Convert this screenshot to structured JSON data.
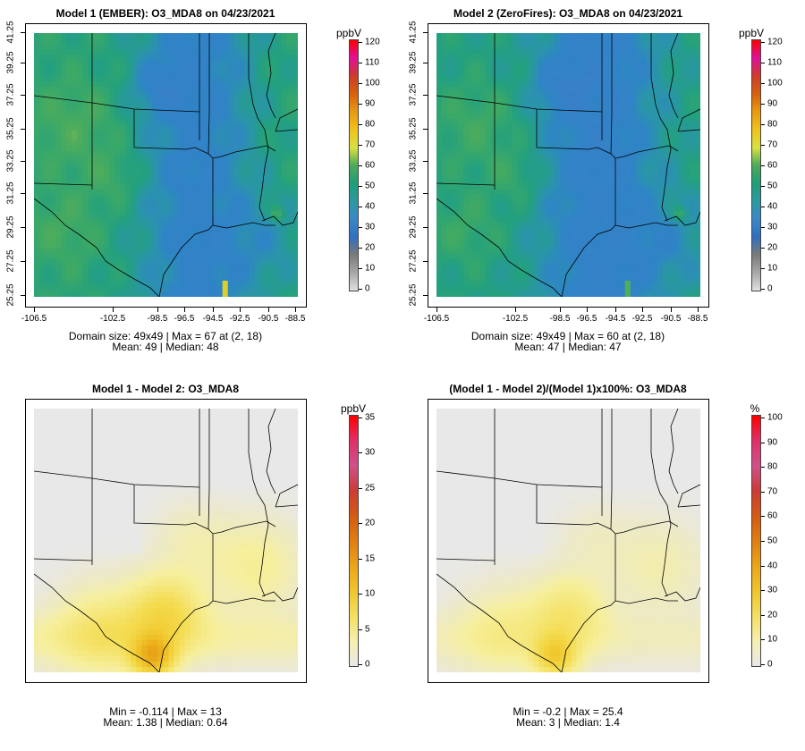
{
  "colors": {
    "frame": "#000000",
    "land_bg": "#e6e6e6",
    "absolute_scale": [
      "#e0e0e0",
      "#a8a8a8",
      "#7a7a7a",
      "#2f6fc0",
      "#3a88c8",
      "#2b9aa0",
      "#1f9e78",
      "#4caa5a",
      "#d9e040",
      "#f0c21a",
      "#e89a10",
      "#d8600c",
      "#cf3c2a",
      "#e0109a",
      "#ff0000"
    ],
    "diff_scale": [
      "#e8e8e8",
      "#f6efb0",
      "#f4df60",
      "#f0c52a",
      "#eca418",
      "#e07e10",
      "#d55a12",
      "#cc3b35",
      "#d0508a",
      "#e03068",
      "#ff0000"
    ]
  },
  "panels": [
    {
      "title": "Model 1 (EMBER): O3_MDA8 on 04/23/2021",
      "unit": "ppbV",
      "kind": "absolute",
      "colorbar_ticks": [
        "120",
        "110",
        "100",
        "90",
        "80",
        "70",
        "60",
        "50",
        "40",
        "30",
        "20",
        "10",
        "0"
      ],
      "x_ticks": [
        "-106.5",
        "-102.5",
        "-98.5",
        "-96.5",
        "-94.5",
        "-92.5",
        "-90.5",
        "-88.5"
      ],
      "y_ticks": [
        "41.25",
        "39.25",
        "37.25",
        "35.25",
        "33.25",
        "31.25",
        "29.25",
        "27.25",
        "25.25"
      ],
      "stat_line1": "Domain size: 49x49 | Max = 67 at (2, 18)",
      "stat_line2": "Mean: 49 |  Median: 48"
    },
    {
      "title": "Model 2 (ZeroFires): O3_MDA8 on 04/23/2021",
      "unit": "ppbV",
      "kind": "absolute",
      "colorbar_ticks": [
        "120",
        "110",
        "100",
        "90",
        "80",
        "70",
        "60",
        "50",
        "40",
        "30",
        "20",
        "10",
        "0"
      ],
      "x_ticks": [
        "-106.5",
        "-102.5",
        "-98.5",
        "-96.5",
        "-94.5",
        "-92.5",
        "-90.5",
        "-88.5"
      ],
      "y_ticks": [
        "41.25",
        "39.25",
        "37.25",
        "35.25",
        "33.25",
        "31.25",
        "29.25",
        "27.25",
        "25.25"
      ],
      "stat_line1": "Domain size: 49x49 | Max = 60 at (2, 18)",
      "stat_line2": "Mean: 47 |  Median: 47"
    },
    {
      "title": "Model 1 - Model 2: O3_MDA8",
      "unit": "ppbV",
      "kind": "diff",
      "colorbar_ticks": [
        "35",
        "30",
        "25",
        "20",
        "15",
        "10",
        "5",
        "0"
      ],
      "x_ticks": [],
      "y_ticks": [],
      "stat_line1": "Min = -0.114 | Max = 13",
      "stat_line2": "Mean: 1.38 |  Median: 0.64"
    },
    {
      "title": "(Model 1 - Model 2)/(Model 1)x100%: O3_MDA8",
      "unit": "%",
      "kind": "pct",
      "colorbar_ticks": [
        "100",
        "90",
        "80",
        "70",
        "60",
        "50",
        "40",
        "30",
        "20",
        "10",
        "0"
      ],
      "x_ticks": [],
      "y_ticks": [],
      "stat_line1": "Min = -0.2 | Max = 25.4",
      "stat_line2": "Mean: 3 |  Median: 1.4"
    }
  ]
}
